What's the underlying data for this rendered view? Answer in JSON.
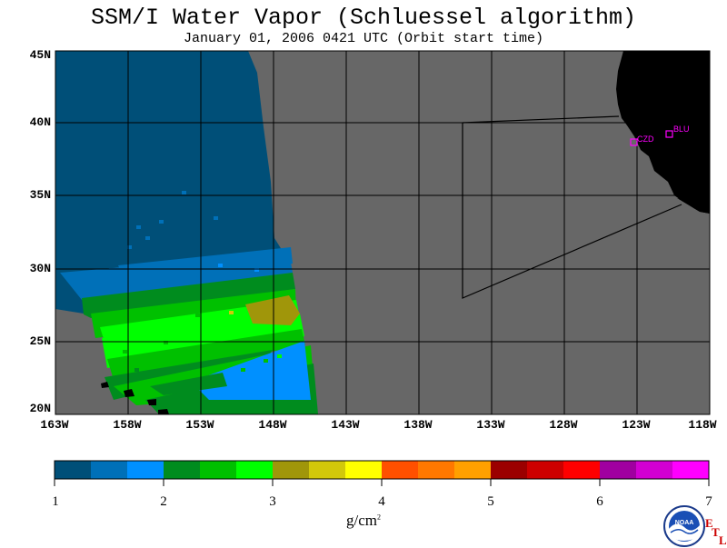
{
  "header": {
    "title": "SSM/I Water Vapor (Schluessel algorithm)",
    "subtitle": "January 01, 2006  0421 UTC  (Orbit start time)"
  },
  "map": {
    "lat_labels": [
      "45N",
      "40N",
      "35N",
      "30N",
      "25N",
      "20N"
    ],
    "lon_labels": [
      "163W",
      "158W",
      "153W",
      "148W",
      "143W",
      "138W",
      "133W",
      "128W",
      "123W",
      "118W"
    ],
    "stations": [
      {
        "id": "CZD"
      },
      {
        "id": "BLU"
      }
    ],
    "colors": {
      "no_data": "#676767",
      "land": "#000000",
      "grid": "#000000",
      "station": "#ff00ff"
    }
  },
  "colorbar": {
    "colors": [
      "#004f78",
      "#0070b8",
      "#0090ff",
      "#008c1e",
      "#00c000",
      "#00ff00",
      "#a0960a",
      "#d2c80a",
      "#ffff00",
      "#ff5000",
      "#ff7800",
      "#ffa000",
      "#9b0000",
      "#cd0000",
      "#ff0000",
      "#a000a0",
      "#d200d2",
      "#ff00ff"
    ],
    "tick_labels": [
      "1",
      "2",
      "3",
      "4",
      "5",
      "6",
      "7"
    ],
    "range": [
      1,
      7
    ],
    "units": "g/cm",
    "units_superscript": "2"
  },
  "logo": {
    "text": "NOAA",
    "etl_letters": [
      "E",
      "T",
      "L"
    ]
  }
}
